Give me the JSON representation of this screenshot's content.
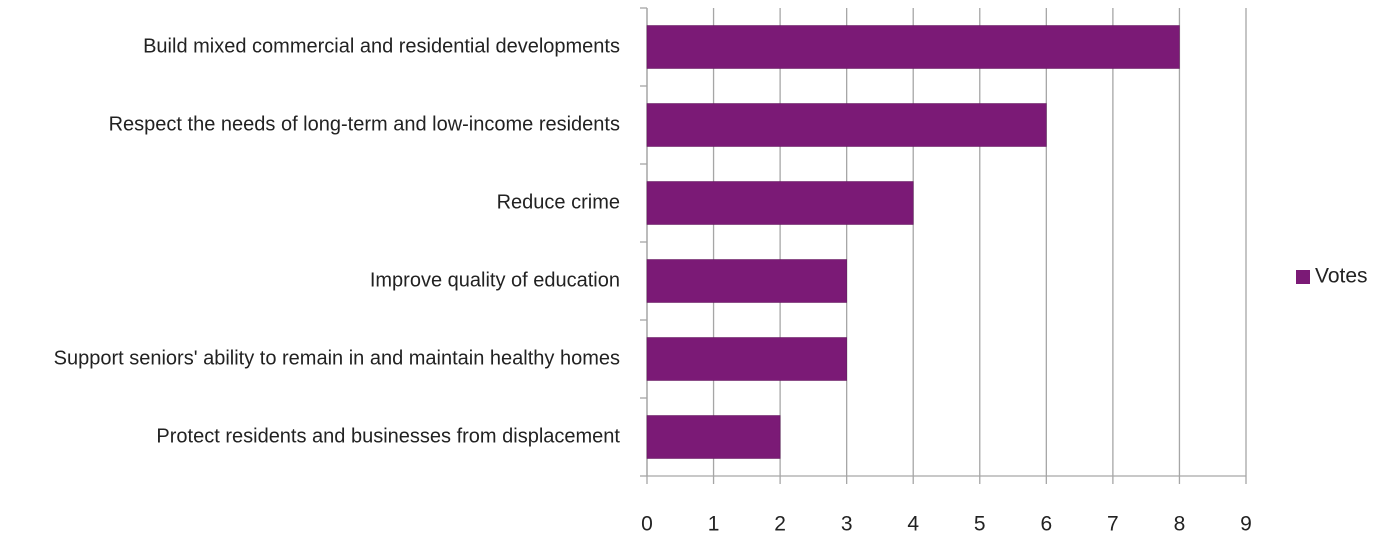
{
  "chart_data": {
    "type": "hbar",
    "categories": [
      "Build mixed commercial and residential developments",
      "Respect the needs of long-term and low-income residents",
      "Reduce crime",
      "Improve quality of education",
      "Support seniors' ability to remain in and maintain healthy homes",
      "Protect residents and businesses from displacement"
    ],
    "series": [
      {
        "name": "Votes",
        "color": "#7b1a76",
        "values": [
          8,
          6,
          4,
          3,
          3,
          2
        ]
      }
    ],
    "xlim": [
      0,
      9
    ],
    "xticks": [
      0,
      1,
      2,
      3,
      4,
      5,
      6,
      7,
      8,
      9
    ],
    "grid": true,
    "legend": "right"
  }
}
